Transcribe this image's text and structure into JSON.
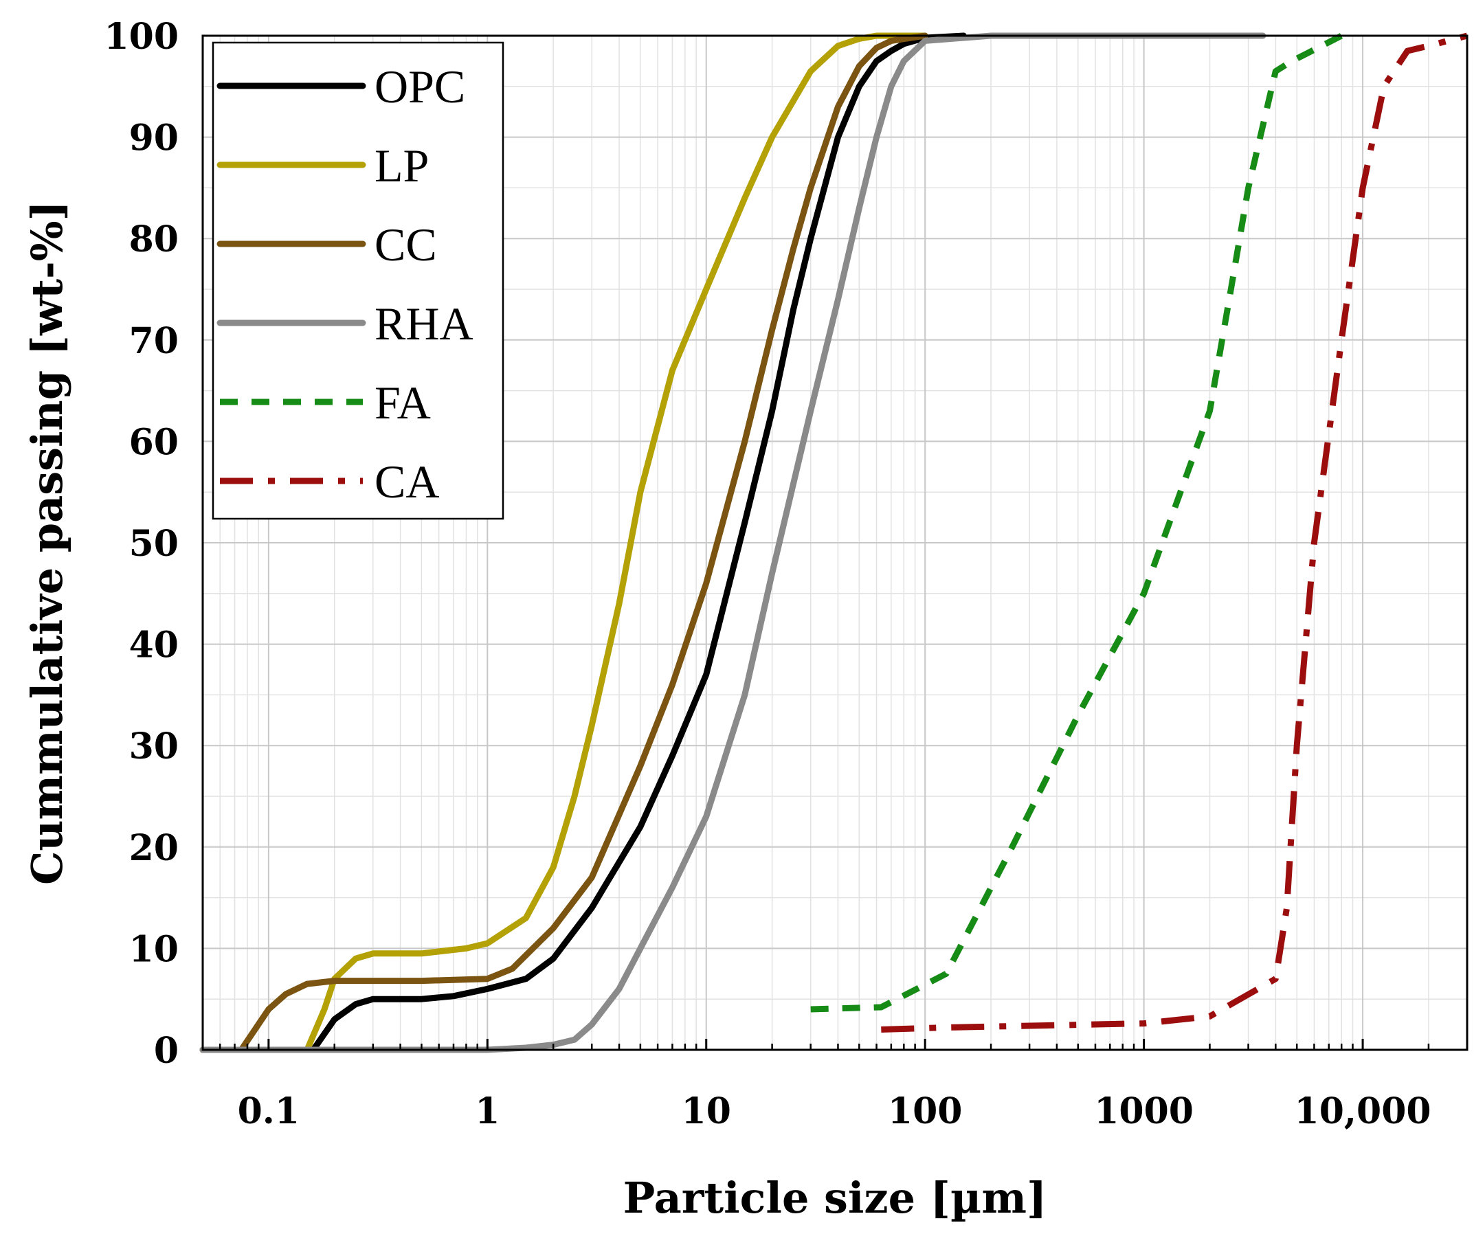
{
  "chart_data": {
    "type": "line",
    "xscale": "log",
    "xlim": [
      0.05,
      30000
    ],
    "ylim": [
      0,
      100
    ],
    "xlabel": "Particle size [µm]",
    "ylabel": "Cummulative passing [wt-%]",
    "grid": true,
    "legend_position": "top-left",
    "x_ticks": [
      {
        "value": 0.1,
        "label": "0.1"
      },
      {
        "value": 1,
        "label": "1"
      },
      {
        "value": 10,
        "label": "10"
      },
      {
        "value": 100,
        "label": "100"
      },
      {
        "value": 1000,
        "label": "1000"
      },
      {
        "value": 10000,
        "label": "10,000"
      }
    ],
    "y_ticks": [
      {
        "value": 0,
        "label": "0"
      },
      {
        "value": 10,
        "label": "10"
      },
      {
        "value": 20,
        "label": "20"
      },
      {
        "value": 30,
        "label": "30"
      },
      {
        "value": 40,
        "label": "40"
      },
      {
        "value": 50,
        "label": "50"
      },
      {
        "value": 60,
        "label": "60"
      },
      {
        "value": 70,
        "label": "70"
      },
      {
        "value": 80,
        "label": "80"
      },
      {
        "value": 90,
        "label": "90"
      },
      {
        "value": 100,
        "label": "100"
      }
    ],
    "series": [
      {
        "name": "OPC",
        "color": "#000000",
        "dash": "solid",
        "x": [
          0.05,
          0.16,
          0.2,
          0.25,
          0.3,
          0.5,
          0.7,
          1,
          1.5,
          2,
          3,
          5,
          7,
          10,
          15,
          20,
          25,
          30,
          40,
          50,
          60,
          70,
          80,
          100,
          150
        ],
        "y": [
          0,
          0,
          3,
          4.5,
          5,
          5,
          5.3,
          6,
          7,
          9,
          14,
          22,
          29,
          37,
          52,
          63,
          73,
          80,
          90,
          95,
          97.5,
          98.5,
          99.2,
          99.8,
          100
        ]
      },
      {
        "name": "LP",
        "color": "#b3a106",
        "dash": "solid",
        "x": [
          0.05,
          0.15,
          0.18,
          0.2,
          0.25,
          0.3,
          0.5,
          0.8,
          1,
          1.5,
          2,
          2.5,
          3,
          4,
          5,
          7,
          10,
          15,
          20,
          30,
          40,
          50,
          60,
          70,
          100
        ],
        "y": [
          0,
          0,
          4,
          7,
          9,
          9.5,
          9.5,
          10,
          10.5,
          13,
          18,
          25,
          32,
          44,
          55,
          67,
          75,
          84,
          90,
          96.5,
          99,
          99.7,
          100,
          100,
          100
        ]
      },
      {
        "name": "CC",
        "color": "#7a5410",
        "dash": "solid",
        "x": [
          0.05,
          0.075,
          0.1,
          0.12,
          0.15,
          0.2,
          0.5,
          1,
          1.3,
          2,
          3,
          5,
          7,
          10,
          15,
          20,
          25,
          30,
          40,
          50,
          60,
          70,
          100
        ],
        "y": [
          0,
          0,
          4,
          5.5,
          6.5,
          6.8,
          6.8,
          7,
          8,
          12,
          17,
          28,
          36,
          46,
          60,
          71,
          79,
          85,
          93,
          97,
          98.8,
          99.5,
          100
        ]
      },
      {
        "name": "RHA",
        "color": "#8a8a8a",
        "dash": "solid",
        "x": [
          0.05,
          1,
          1.5,
          2,
          2.5,
          3,
          4,
          5,
          7,
          10,
          15,
          20,
          30,
          40,
          50,
          60,
          70,
          80,
          100,
          200,
          3500
        ],
        "y": [
          0,
          0,
          0.2,
          0.5,
          1,
          2.5,
          6,
          10,
          16,
          23,
          35,
          47,
          63,
          74,
          83,
          90,
          95,
          97.5,
          99.5,
          100,
          100
        ]
      },
      {
        "name": "FA",
        "color": "#168c16",
        "dash": "dash",
        "x": [
          30,
          63,
          125,
          250,
          500,
          1000,
          2000,
          2500,
          3000,
          4000,
          4750,
          8000
        ],
        "y": [
          4,
          4.2,
          7.5,
          20,
          33,
          45,
          63,
          75,
          85,
          96.5,
          97.5,
          100
        ]
      },
      {
        "name": "CA",
        "color": "#9c0e0e",
        "dash": "dashdot",
        "x": [
          63,
          125,
          1000,
          2000,
          4000,
          4500,
          5000,
          6000,
          8000,
          10000,
          12500,
          16000,
          20000,
          30000
        ],
        "y": [
          2,
          2.2,
          2.6,
          3.3,
          7,
          14,
          30,
          50,
          70,
          85,
          95,
          98.5,
          99,
          100
        ]
      }
    ]
  }
}
